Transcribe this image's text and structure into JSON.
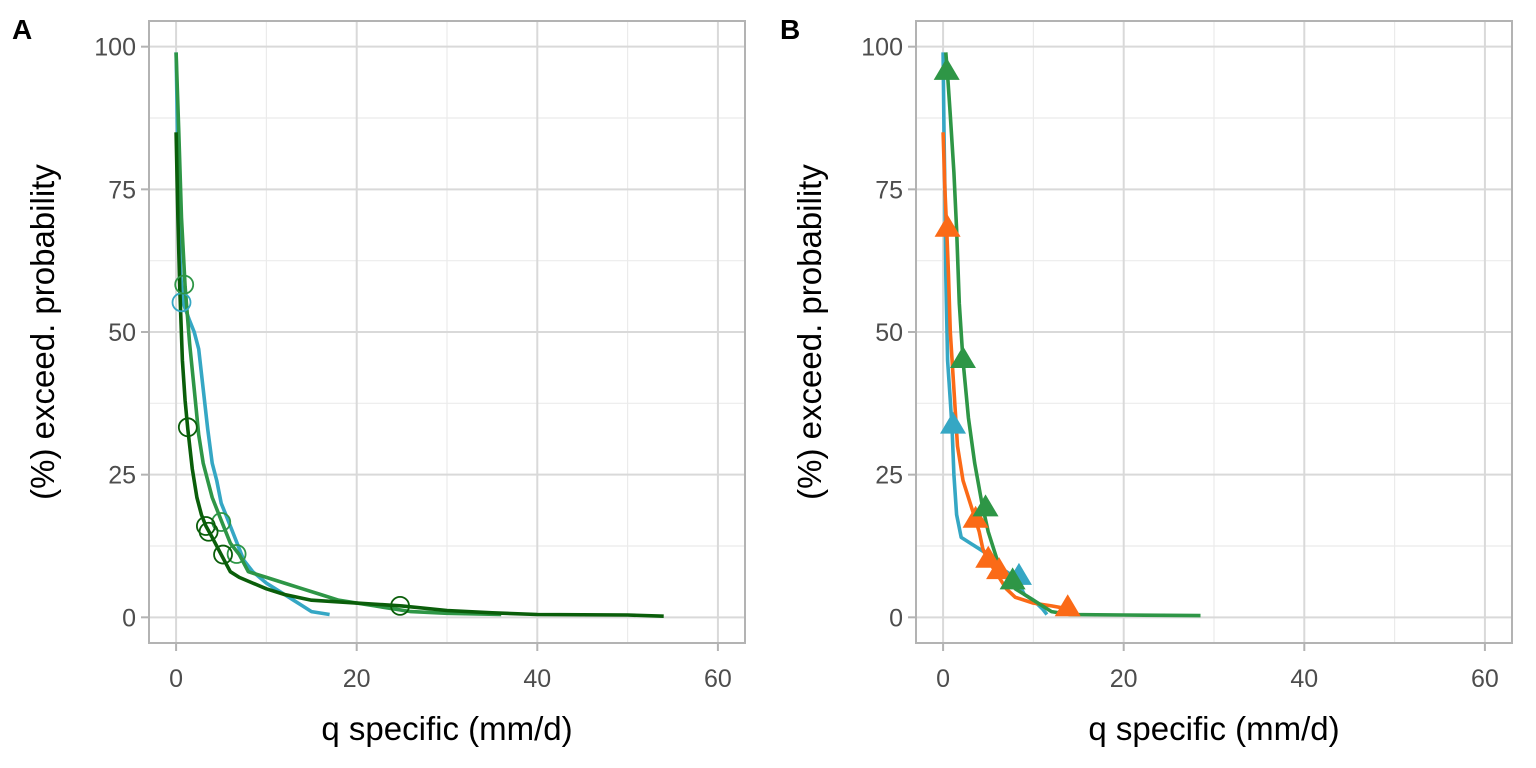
{
  "chart_data": [
    {
      "panel": "A",
      "type": "line",
      "xlabel": "q specific (mm/d)",
      "ylabel": "(%) exceed. probability",
      "xlim": [
        -3,
        63
      ],
      "ylim": [
        -4.5,
        104.5
      ],
      "xticks": [
        0,
        20,
        40,
        60
      ],
      "yticks": [
        0,
        25,
        50,
        75,
        100
      ],
      "grid": true,
      "marker": "open-circle",
      "series": [
        {
          "name": "teal",
          "color": "#35a7c4",
          "points": [
            [
              0.0,
              99
            ],
            [
              0.1,
              90
            ],
            [
              0.2,
              80
            ],
            [
              0.3,
              70
            ],
            [
              0.5,
              60
            ],
            [
              0.8,
              55
            ],
            [
              1.5,
              52
            ],
            [
              2.0,
              50
            ],
            [
              2.5,
              47
            ],
            [
              3.0,
              40
            ],
            [
              3.5,
              33
            ],
            [
              4.0,
              27
            ],
            [
              4.5,
              24
            ],
            [
              5.0,
              20
            ],
            [
              5.5,
              18
            ],
            [
              6.0,
              16
            ],
            [
              6.5,
              14
            ],
            [
              7.0,
              12
            ],
            [
              7.5,
              10
            ],
            [
              8.5,
              8
            ],
            [
              10,
              6
            ],
            [
              11,
              5
            ],
            [
              12,
              4
            ],
            [
              13,
              3
            ],
            [
              14,
              2
            ],
            [
              15,
              1
            ],
            [
              17,
              0.5
            ]
          ],
          "markers": [
            [
              0.6,
              55.2
            ]
          ]
        },
        {
          "name": "green",
          "color": "#2e9646",
          "points": [
            [
              0.0,
              99
            ],
            [
              0.3,
              85
            ],
            [
              0.6,
              70
            ],
            [
              1.0,
              58
            ],
            [
              1.5,
              48
            ],
            [
              2.0,
              40
            ],
            [
              2.5,
              32
            ],
            [
              3.0,
              27
            ],
            [
              3.5,
              24
            ],
            [
              4.0,
              21
            ],
            [
              5.0,
              17
            ],
            [
              6.0,
              13
            ],
            [
              7.0,
              11
            ],
            [
              8.0,
              8
            ],
            [
              10,
              7
            ],
            [
              12,
              6
            ],
            [
              14,
              5
            ],
            [
              16,
              4
            ],
            [
              18,
              3
            ],
            [
              22,
              2
            ],
            [
              26,
              1
            ],
            [
              30,
              0.7
            ],
            [
              36,
              0.5
            ]
          ],
          "markers": [
            [
              0.9,
              58.3
            ],
            [
              5.0,
              16.7
            ],
            [
              6.7,
              11.1
            ]
          ]
        },
        {
          "name": "dark-green",
          "color": "#0a5e0a",
          "points": [
            [
              0.0,
              85
            ],
            [
              0.2,
              70
            ],
            [
              0.4,
              58
            ],
            [
              0.7,
              45
            ],
            [
              1.0,
              38
            ],
            [
              1.3,
              33
            ],
            [
              1.8,
              26
            ],
            [
              2.3,
              21
            ],
            [
              2.8,
              18
            ],
            [
              3.3,
              16
            ],
            [
              4.0,
              14
            ],
            [
              5.0,
              11
            ],
            [
              6.0,
              8
            ],
            [
              7.0,
              7
            ],
            [
              8.5,
              6
            ],
            [
              10,
              5
            ],
            [
              12,
              4
            ],
            [
              15,
              3
            ],
            [
              20,
              2.5
            ],
            [
              25,
              2
            ],
            [
              30,
              1.2
            ],
            [
              35,
              0.8
            ],
            [
              40,
              0.5
            ],
            [
              50,
              0.4
            ],
            [
              54,
              0.2
            ]
          ],
          "markers": [
            [
              1.3,
              33.3
            ],
            [
              3.3,
              16.0
            ],
            [
              3.6,
              15.0
            ],
            [
              5.2,
              11.0
            ],
            [
              24.8,
              2.0
            ]
          ]
        }
      ]
    },
    {
      "panel": "B",
      "type": "line",
      "xlabel": "q specific (mm/d)",
      "ylabel": "(%) exceed. probability",
      "xlim": [
        -3,
        63
      ],
      "ylim": [
        -4.5,
        104.5
      ],
      "xticks": [
        0,
        20,
        40,
        60
      ],
      "yticks": [
        0,
        25,
        50,
        75,
        100
      ],
      "grid": true,
      "marker": "filled-triangle",
      "series": [
        {
          "name": "teal",
          "color": "#35a7c4",
          "points": [
            [
              0.0,
              99
            ],
            [
              0.1,
              85
            ],
            [
              0.2,
              75
            ],
            [
              0.3,
              60
            ],
            [
              0.5,
              45
            ],
            [
              0.8,
              38
            ],
            [
              1.0,
              33
            ],
            [
              1.2,
              25
            ],
            [
              1.5,
              18
            ],
            [
              2.0,
              14
            ],
            [
              3.0,
              13
            ],
            [
              4.0,
              12
            ],
            [
              5.0,
              11
            ],
            [
              6.0,
              9
            ],
            [
              7.0,
              8
            ],
            [
              8.0,
              7
            ],
            [
              9.0,
              4
            ],
            [
              10,
              3
            ],
            [
              11,
              1.5
            ],
            [
              11.5,
              0.5
            ]
          ],
          "markers": [
            [
              1.1,
              33.5
            ],
            [
              8.4,
              7.0
            ]
          ]
        },
        {
          "name": "orange",
          "color": "#fb6a17",
          "points": [
            [
              0.0,
              85
            ],
            [
              0.2,
              75
            ],
            [
              0.4,
              68
            ],
            [
              0.6,
              60
            ],
            [
              0.8,
              50
            ],
            [
              1.2,
              40
            ],
            [
              1.6,
              30
            ],
            [
              2.2,
              24
            ],
            [
              3.0,
              20
            ],
            [
              3.6,
              17
            ],
            [
              4.0,
              15
            ],
            [
              4.4,
              12
            ],
            [
              5.0,
              10
            ],
            [
              5.8,
              8
            ],
            [
              7.0,
              5
            ],
            [
              8.0,
              3.5
            ],
            [
              10,
              2.5
            ],
            [
              12,
              2
            ],
            [
              13.8,
              1.5
            ]
          ],
          "markers": [
            [
              0.5,
              68.0
            ],
            [
              3.6,
              17.0
            ],
            [
              5.0,
              10.0
            ],
            [
              6.2,
              8.0
            ],
            [
              13.8,
              1.5
            ]
          ]
        },
        {
          "name": "green",
          "color": "#2e9646",
          "points": [
            [
              0.3,
              99
            ],
            [
              0.5,
              95
            ],
            [
              0.8,
              88
            ],
            [
              1.2,
              78
            ],
            [
              1.5,
              68
            ],
            [
              1.8,
              55
            ],
            [
              2.2,
              45
            ],
            [
              2.8,
              35
            ],
            [
              3.5,
              27
            ],
            [
              4.3,
              20
            ],
            [
              5.0,
              15
            ],
            [
              6.0,
              10
            ],
            [
              7.0,
              7
            ],
            [
              8.0,
              5
            ],
            [
              9.0,
              4
            ],
            [
              10,
              3
            ],
            [
              12,
              1
            ],
            [
              14,
              0.5
            ],
            [
              20,
              0.4
            ],
            [
              28.5,
              0.3
            ]
          ],
          "markers": [
            [
              0.4,
              95.5
            ],
            [
              2.2,
              45.0
            ],
            [
              4.7,
              19.0
            ],
            [
              7.7,
              6.2
            ]
          ]
        }
      ]
    }
  ],
  "panels": [
    {
      "tag": "A"
    },
    {
      "tag": "B"
    }
  ]
}
